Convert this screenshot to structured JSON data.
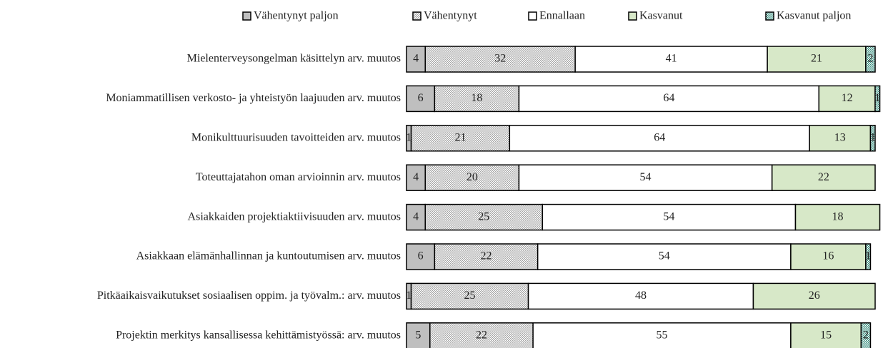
{
  "chart_data": {
    "type": "stacked-bar-horizontal",
    "categories": [
      "Mielenterveysongelman käsittelyn arv. muutos",
      "Moniammatillisen verkosto- ja yhteistyön laajuuden arv. muutos",
      "Monikulttuurisuuden tavoitteiden arv. muutos",
      "Toteuttajatahon oman arvioinnin arv. muutos",
      "Asiakkaiden projektiaktiivisuuden arv. muutos",
      "Asiakkaan elämänhallinnan ja kuntoutumisen arv. muutos",
      "Pitkäaikaisvaikutukset sosiaalisen oppim. ja työvalm.: arv. muutos",
      "Projektin merkitys kansallisessa kehittämistyössä: arv. muutos"
    ],
    "series": [
      {
        "name": "Vähentynyt paljon",
        "color": "#bfbfbf",
        "hatch": false,
        "values": [
          4,
          6,
          1,
          4,
          4,
          6,
          1,
          5
        ]
      },
      {
        "name": "Vähentynyt",
        "color": "#a6a6a6",
        "hatch": true,
        "values": [
          32,
          18,
          21,
          20,
          25,
          22,
          25,
          22
        ]
      },
      {
        "name": "Ennallaan",
        "color": "#ffffff",
        "hatch": false,
        "values": [
          41,
          64,
          64,
          54,
          54,
          54,
          48,
          55
        ]
      },
      {
        "name": "Kasvanut",
        "color": "#d7e8c8",
        "hatch": false,
        "values": [
          21,
          12,
          13,
          22,
          18,
          16,
          26,
          15
        ]
      },
      {
        "name": "Kasvanut paljon",
        "color": "#2f8a78",
        "hatch": true,
        "values": [
          2,
          1,
          1,
          null,
          null,
          1,
          null,
          2
        ]
      }
    ],
    "xlim": [
      0,
      100
    ],
    "legend": "top"
  }
}
